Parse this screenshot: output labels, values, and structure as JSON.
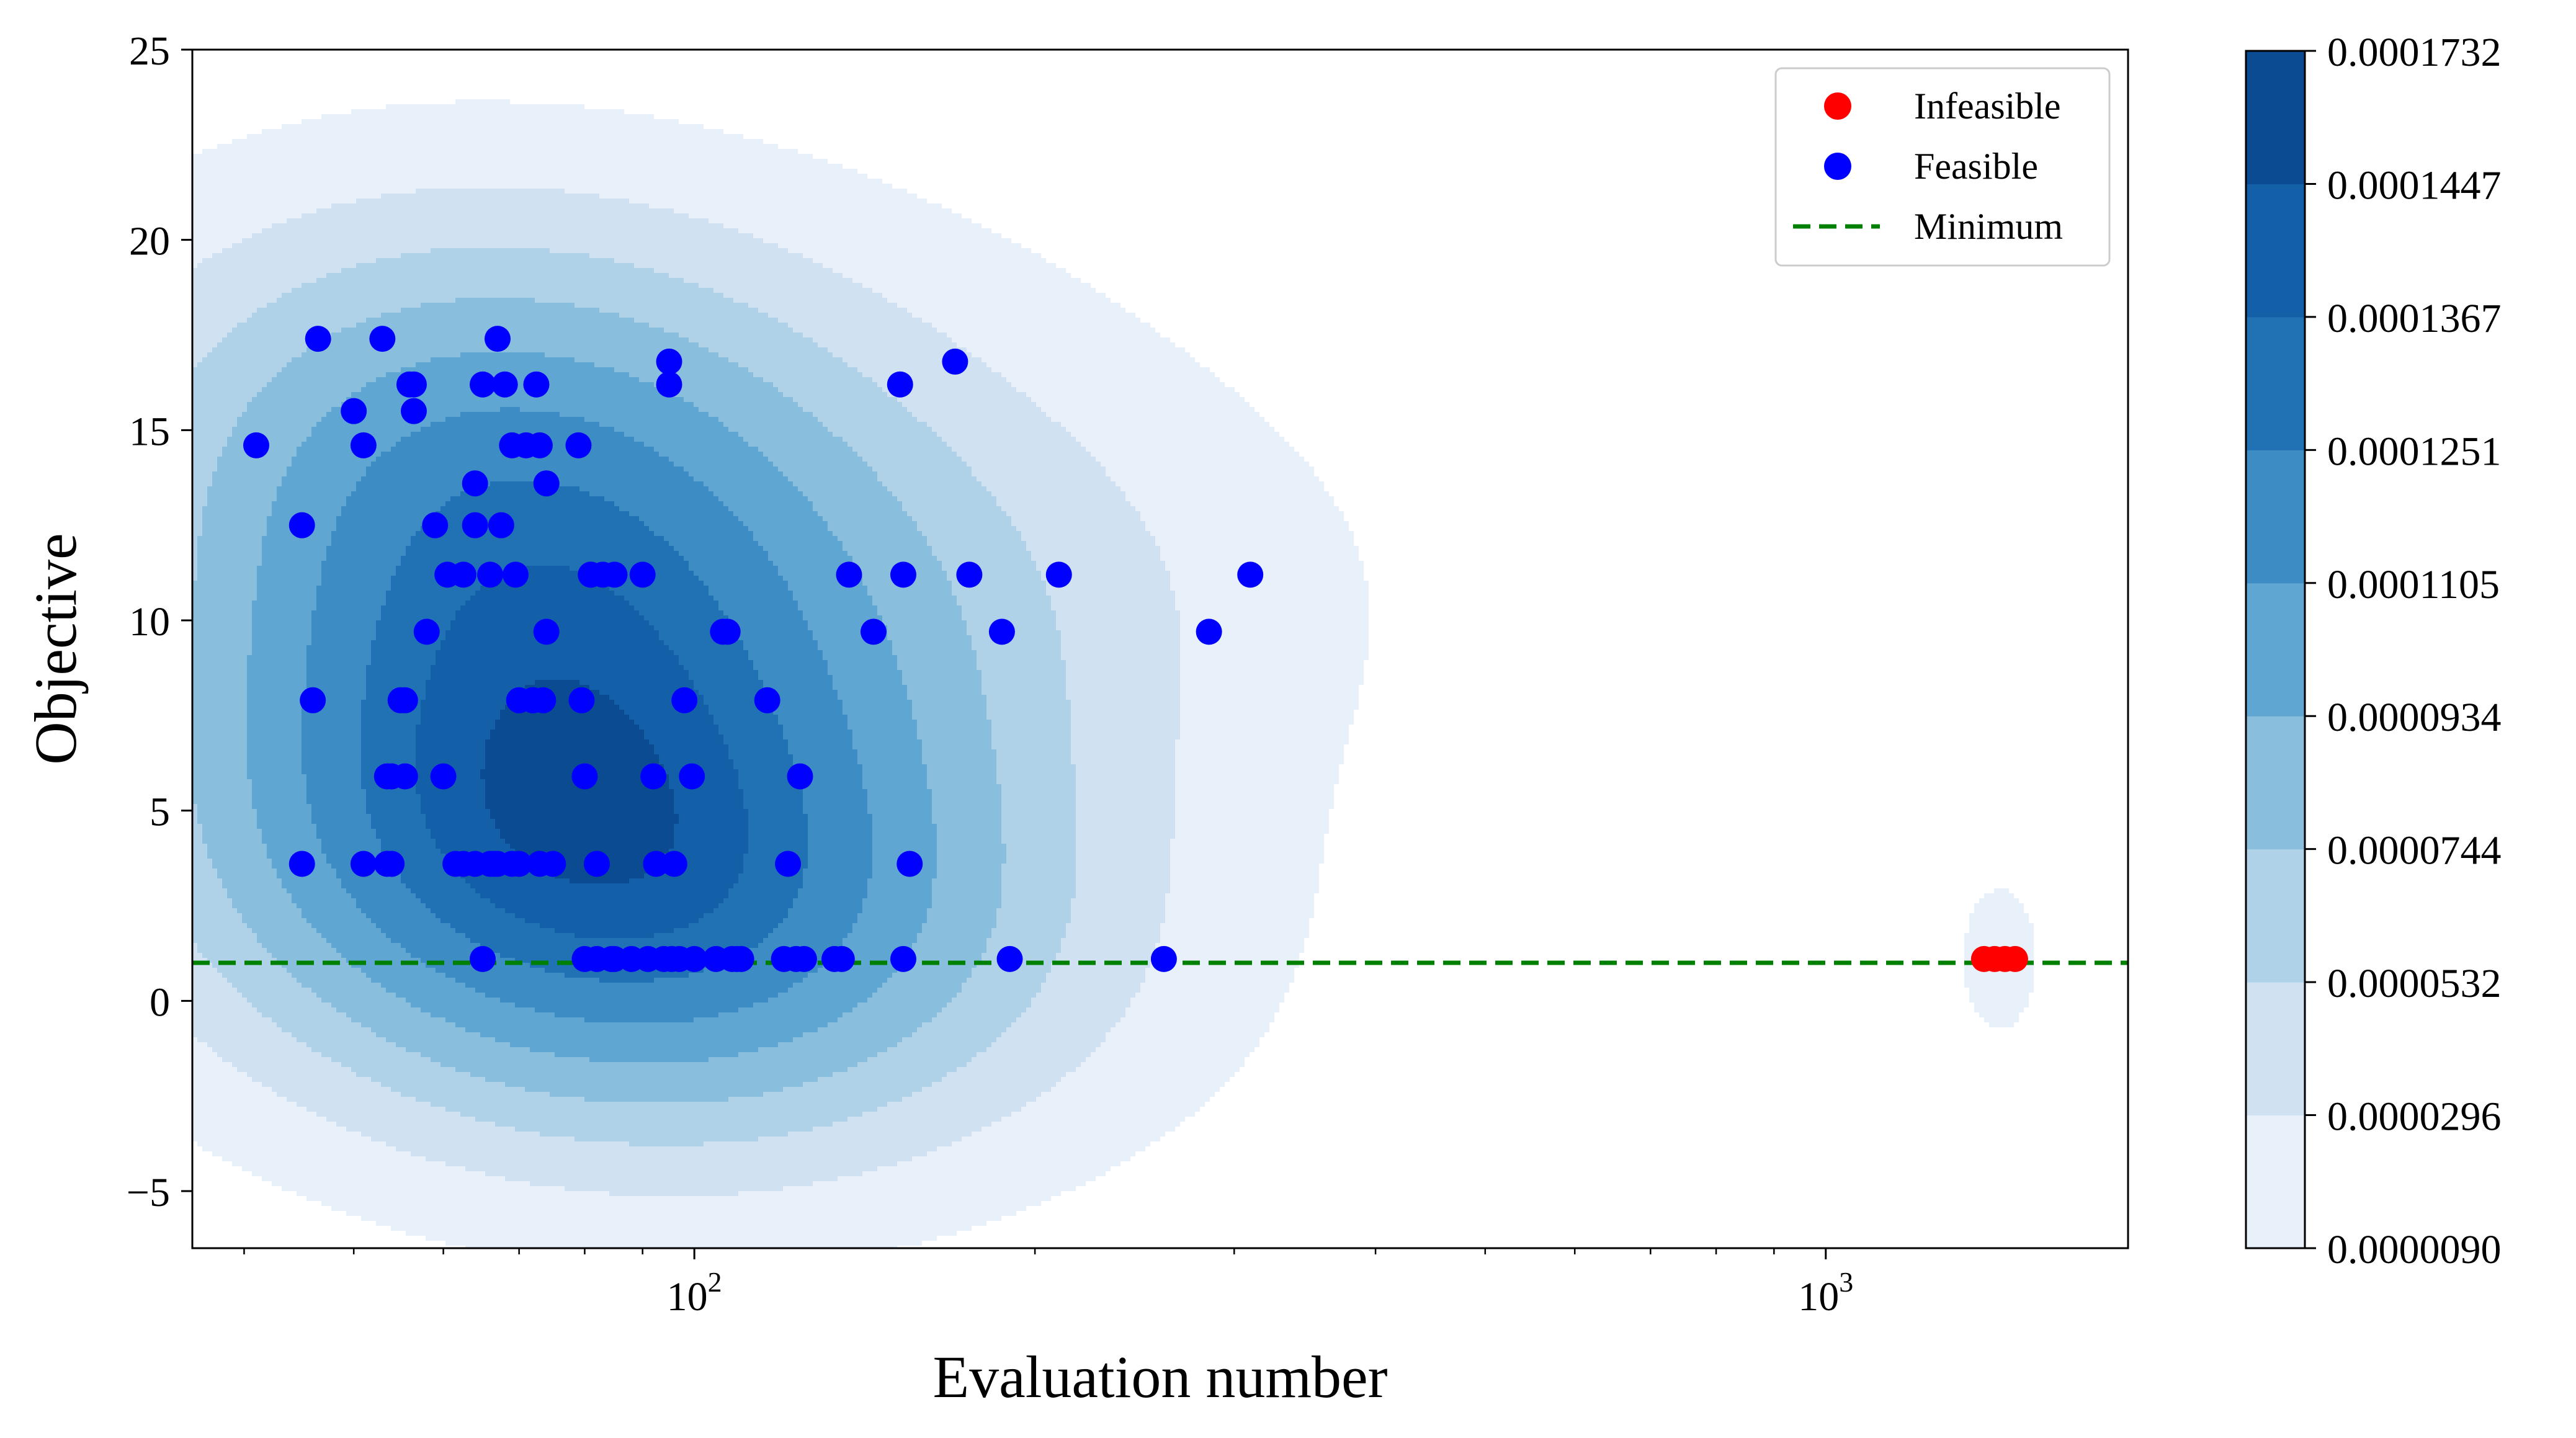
{
  "chart_data": {
    "type": "scatter",
    "title": "",
    "xlabel": "Evaluation number",
    "ylabel": "Objective",
    "xscale": "log",
    "xlim": [
      36,
      1850
    ],
    "ylim": [
      -6.5,
      25
    ],
    "x_ticks": [
      {
        "value": 100,
        "base": "10",
        "exp": "2"
      },
      {
        "value": 1000,
        "base": "10",
        "exp": "3"
      }
    ],
    "y_ticks": [
      {
        "value": -5,
        "label": "−5"
      },
      {
        "value": 0,
        "label": "0"
      },
      {
        "value": 5,
        "label": "5"
      },
      {
        "value": 10,
        "label": "10"
      },
      {
        "value": 15,
        "label": "15"
      },
      {
        "value": 20,
        "label": "20"
      },
      {
        "value": 25,
        "label": "25"
      }
    ],
    "minimum_value": 1.0,
    "legend": {
      "placement": "top-right",
      "entries": [
        {
          "label": "Infeasible",
          "color": "#ff0000",
          "kind": "marker"
        },
        {
          "label": "Feasible",
          "color": "#0000ff",
          "kind": "marker"
        },
        {
          "label": "Minimum",
          "color": "#008000",
          "kind": "dashed-line"
        }
      ]
    },
    "colorbar": {
      "levels": [
        9e-06,
        2.96e-05,
        5.32e-05,
        7.44e-05,
        9.34e-05,
        0.0001105,
        0.0001251,
        0.0001367,
        0.0001447,
        0.0001732
      ],
      "labels": [
        "0.0000090",
        "0.0000296",
        "0.0000532",
        "0.0000744",
        "0.0000934",
        "0.0001105",
        "0.0001251",
        "0.0001367",
        "0.0001447",
        "0.0001732"
      ],
      "colors": [
        "#e8f1fa",
        "#d0e1f2",
        "#b0d2e8",
        "#89bedc",
        "#60a6d2",
        "#3d8dc4",
        "#2171b5",
        "#1460a8",
        "#0a4b91"
      ]
    },
    "series": [
      {
        "name": "Infeasible",
        "color": "#ff0000",
        "x": [
          1380,
          1410,
          1440,
          1470
        ],
        "y": [
          1.1,
          1.1,
          1.1,
          1.1
        ]
      },
      {
        "name": "Feasible",
        "color": "#0000ff",
        "x": [
          41,
          45,
          45,
          46,
          46.5,
          50,
          51,
          51,
          53,
          53.5,
          53.5,
          54,
          54,
          55,
          55.5,
          55.5,
          56,
          56.5,
          56.5,
          58,
          59,
          60,
          60.5,
          61.5,
          62.5,
          62.5,
          64,
          64,
          64,
          65,
          65,
          66,
          66,
          66.5,
          67,
          67,
          67.5,
          68,
          69,
          69,
          69.5,
          70,
          70,
          71,
          72,
          72,
          72.5,
          73,
          73,
          73.5,
          74,
          74,
          75,
          79,
          79.5,
          80,
          80,
          81,
          81,
          82,
          82,
          83,
          84.5,
          85,
          85,
          88,
          90,
          91,
          92,
          92.5,
          94,
          95,
          95,
          95.5,
          96,
          97,
          98,
          99.5,
          100,
          104.5,
          106,
          107,
          108,
          109,
          110,
          116,
          120,
          121,
          123,
          124,
          125,
          133,
          135,
          137,
          144,
          152,
          153,
          153,
          155,
          170,
          175,
          187,
          190,
          210,
          260,
          285,
          310
        ],
        "y": [
          14.6,
          12.5,
          3.6,
          7.9,
          17.4,
          15.5,
          14.6,
          3.6,
          17.4,
          5.9,
          3.6,
          5.9,
          3.6,
          7.9,
          5.9,
          7.9,
          16.2,
          15.5,
          16.2,
          9.7,
          12.5,
          5.9,
          11.2,
          3.6,
          3.6,
          11.2,
          3.6,
          13.6,
          12.5,
          16.2,
          1.1,
          11.2,
          3.6,
          3.6,
          3.6,
          17.4,
          12.5,
          16.2,
          3.6,
          14.6,
          11.2,
          3.6,
          7.9,
          14.6,
          7.9,
          7.9,
          16.2,
          3.6,
          14.6,
          7.9,
          13.6,
          9.7,
          3.6,
          14.6,
          7.9,
          5.9,
          1.1,
          11.2,
          11.2,
          3.6,
          1.1,
          11.2,
          1.1,
          11.2,
          1.1,
          1.1,
          11.2,
          1.1,
          5.9,
          3.6,
          1.1,
          16.8,
          16.2,
          1.1,
          3.6,
          1.1,
          7.9,
          5.9,
          1.1,
          1.1,
          9.7,
          9.7,
          1.1,
          1.1,
          1.1,
          7.9,
          1.1,
          3.6,
          1.1,
          5.9,
          1.1,
          1.1,
          1.1,
          11.2,
          9.7,
          16.2,
          11.2,
          1.1,
          3.6,
          16.8,
          11.2,
          9.7,
          1.1,
          11.2,
          1.1,
          9.7,
          11.2
        ]
      }
    ]
  }
}
